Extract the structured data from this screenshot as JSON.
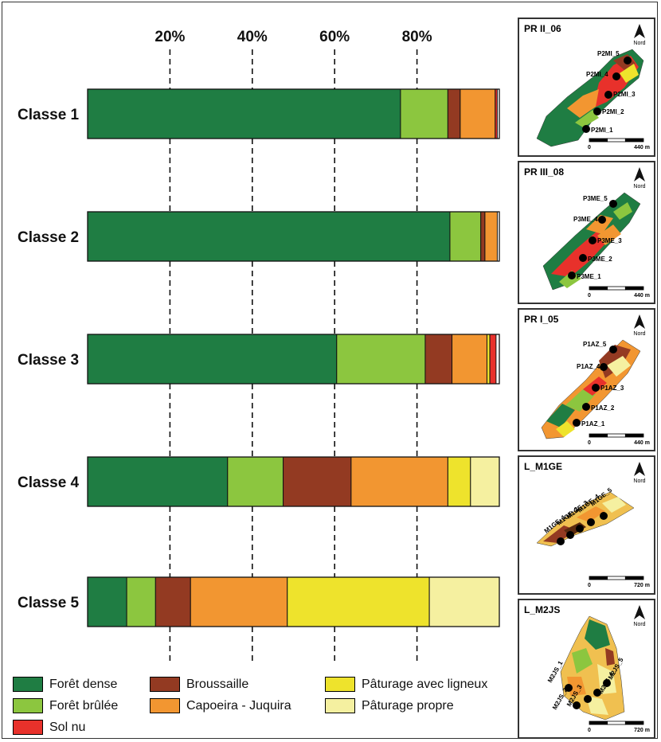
{
  "chart_data": {
    "type": "bar",
    "orientation": "horizontal",
    "stacked": true,
    "categories": [
      "Classe 1",
      "Classe 2",
      "Classe 3",
      "Classe 4",
      "Classe 5"
    ],
    "tick_labels": [
      "20%",
      "40%",
      "60%",
      "80%"
    ],
    "ticks": [
      20,
      40,
      60,
      80
    ],
    "xlim": [
      0,
      100
    ],
    "grid": "dashed vertical lines",
    "legend_position": "bottom",
    "series": [
      {
        "name": "Forêt dense",
        "color": "#1f7d43",
        "values": [
          76,
          88,
          60.5,
          34,
          9.5
        ]
      },
      {
        "name": "Forêt brûlée",
        "color": "#8cc63f",
        "values": [
          11.5,
          7.5,
          21.5,
          13.5,
          7
        ]
      },
      {
        "name": "Broussaille",
        "color": "#933a22",
        "values": [
          3,
          1,
          6.5,
          16.5,
          8.5
        ]
      },
      {
        "name": "Capoeira - Juquira",
        "color": "#f29631",
        "values": [
          8.5,
          3,
          8.5,
          23.5,
          23.5
        ]
      },
      {
        "name": "Pâturage avec ligneux",
        "color": "#eee32c",
        "values": [
          0,
          0,
          0.7,
          5.5,
          34.5
        ]
      },
      {
        "name": "Pâturage propre",
        "color": "#f5f0a0",
        "values": [
          0,
          0,
          0,
          7,
          17
        ]
      },
      {
        "name": "Sol nu",
        "color": "#e8312b",
        "values": [
          0.5,
          0,
          1.5,
          0,
          0
        ]
      }
    ]
  },
  "legend": {
    "items": [
      {
        "label": "Forêt dense",
        "color": "#1f7d43"
      },
      {
        "label": "Forêt brûlée",
        "color": "#8cc63f"
      },
      {
        "label": "Sol nu",
        "color": "#e8312b"
      },
      {
        "label": "Broussaille",
        "color": "#933a22"
      },
      {
        "label": "Capoeira - Juquira",
        "color": "#f29631"
      },
      {
        "label": "Pâturage avec ligneux",
        "color": "#eee32c"
      },
      {
        "label": "Pâturage propre",
        "color": "#f5f0a0"
      }
    ]
  },
  "maps": [
    {
      "title": "PR II_06",
      "north_label": "Nord",
      "scale_start": "0",
      "scale_end": "440 m",
      "points": [
        "P2MI_5",
        "P2MI_4",
        "P2MI_3",
        "P2MI_2",
        "P2MI_1"
      ],
      "north_icon": "north-arrow-icon"
    },
    {
      "title": "PR III_08",
      "north_label": "Nord",
      "scale_start": "0",
      "scale_end": "440 m",
      "points": [
        "P3ME_5",
        "P3ME_4",
        "P3ME_3",
        "P3ME_2",
        "P3ME_1"
      ],
      "north_icon": "north-arrow-icon"
    },
    {
      "title": "PR I_05",
      "north_label": "Nord",
      "scale_start": "0",
      "scale_end": "440 m",
      "points": [
        "P1AZ_5",
        "P1AZ_4",
        "P1AZ_3",
        "P1AZ_2",
        "P1AZ_1"
      ],
      "north_icon": "north-arrow-icon"
    },
    {
      "title": "L_M1GE",
      "north_label": "Nord",
      "scale_start": "0",
      "scale_end": "720 m",
      "points": [
        "M1GE_5",
        "M1GE_4",
        "M1GE_3",
        "M1GE_2",
        "M1GE_1"
      ],
      "north_icon": "north-arrow-icon"
    },
    {
      "title": "L_M2JS",
      "north_label": "Nord",
      "scale_start": "0",
      "scale_end": "720 m",
      "points": [
        "M2JS_5",
        "M2JS_4",
        "M2JS_3",
        "M2JS_2",
        "M2JS_1"
      ],
      "north_icon": "north-arrow-icon"
    }
  ]
}
